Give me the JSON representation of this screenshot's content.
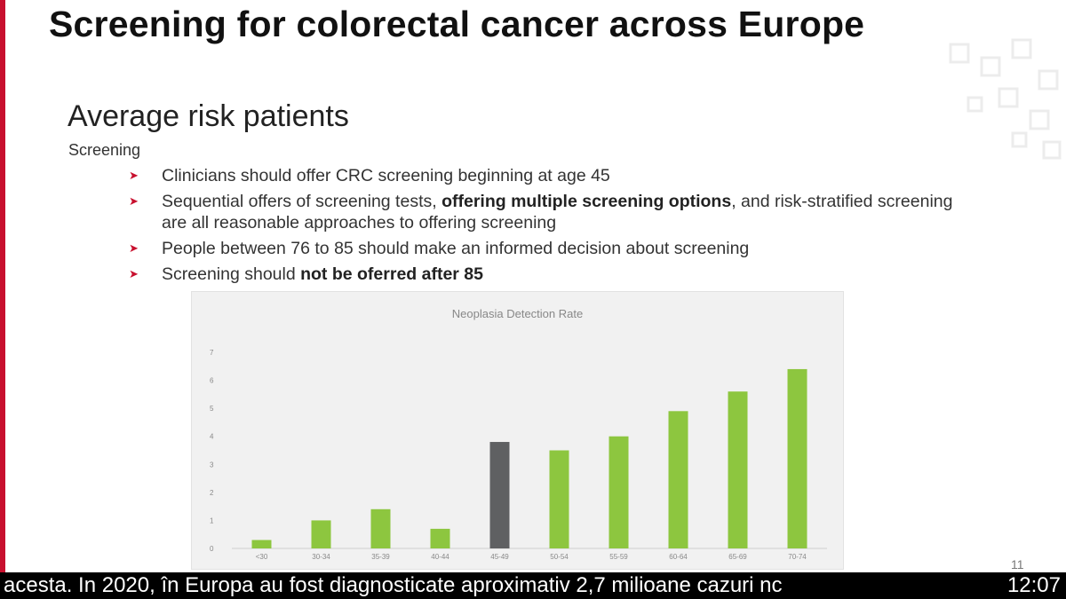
{
  "slide": {
    "title": "Screening for colorectal cancer across Europe",
    "subtitle": "Average risk patients",
    "section": "Screening",
    "bullets": [
      [
        {
          "t": "Clinicians should offer CRC screening beginning at age 45",
          "b": false
        }
      ],
      [
        {
          "t": "Sequential offers of screening tests, ",
          "b": false
        },
        {
          "t": "offering multiple screening options",
          "b": true
        },
        {
          "t": ", and risk-stratified screening are all reasonable approaches to offering screening",
          "b": false
        }
      ],
      [
        {
          "t": "People between 76 to 85 should make an informed decision about screening",
          "b": false
        }
      ],
      [
        {
          "t": "Screening should ",
          "b": false
        },
        {
          "t": "not be oferred after 85",
          "b": true
        }
      ]
    ],
    "page_number": "11",
    "accent_color": "#c8102e"
  },
  "caption": {
    "text": "acesta.  In 2020, în Europa au fost diagnosticate  aproximativ 2,7 milioane cazuri nc",
    "time": "12:07"
  },
  "chart_data": {
    "type": "bar",
    "title": "Neoplasia Detection Rate",
    "categories": [
      "<30",
      "30-34",
      "35-39",
      "40-44",
      "45-49",
      "50-54",
      "55-59",
      "60-64",
      "65-69",
      "70-74"
    ],
    "values": [
      0.3,
      1.0,
      1.4,
      0.7,
      3.8,
      3.5,
      4.0,
      4.9,
      5.6,
      6.4
    ],
    "ylim": [
      0,
      7
    ],
    "yticks": [
      0,
      1,
      2,
      3,
      4,
      5,
      6,
      7
    ],
    "grid": false,
    "colors": {
      "default": "#8dc63f",
      "highlight": "#5f6062"
    },
    "highlight_index": 4
  }
}
